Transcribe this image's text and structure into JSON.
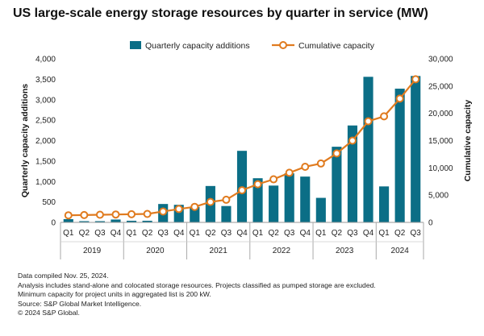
{
  "title": "US large-scale energy storage resources by quarter in service (MW)",
  "chart_data": {
    "type": "bar+line",
    "categories": [
      "Q1",
      "Q2",
      "Q3",
      "Q4",
      "Q1",
      "Q2",
      "Q3",
      "Q4",
      "Q1",
      "Q2",
      "Q3",
      "Q4",
      "Q1",
      "Q2",
      "Q3",
      "Q4",
      "Q1",
      "Q2",
      "Q3",
      "Q4",
      "Q1",
      "Q2",
      "Q3"
    ],
    "years": [
      {
        "label": "2019",
        "start": 0,
        "count": 4
      },
      {
        "label": "2020",
        "start": 4,
        "count": 4
      },
      {
        "label": "2021",
        "start": 8,
        "count": 4
      },
      {
        "label": "2022",
        "start": 12,
        "count": 4
      },
      {
        "label": "2023",
        "start": 16,
        "count": 4
      },
      {
        "label": "2024",
        "start": 20,
        "count": 3
      }
    ],
    "series": [
      {
        "name": "Quarterly capacity additions",
        "type": "bar",
        "axis": "left",
        "color": "#0b6e86",
        "values": [
          80,
          30,
          30,
          70,
          40,
          40,
          450,
          430,
          380,
          890,
          400,
          1750,
          1080,
          900,
          1200,
          1120,
          600,
          1850,
          2370,
          3560,
          880,
          3270,
          3580
        ]
      },
      {
        "name": "Cumulative capacity",
        "type": "line",
        "axis": "right",
        "color": "#e07b1f",
        "values": [
          1300,
          1350,
          1400,
          1450,
          1500,
          1550,
          2000,
          2450,
          2850,
          3750,
          4150,
          5900,
          7000,
          7900,
          9100,
          10200,
          10800,
          12650,
          15000,
          18550,
          19450,
          22700,
          26250
        ]
      }
    ],
    "ylabel_left": "Quarterly capacity additions",
    "ylabel_right": "Cumulative capacity",
    "ylim_left": [
      0,
      4000
    ],
    "ylim_right": [
      0,
      30000
    ],
    "yticks_left": [
      "0",
      "500",
      "1,000",
      "1,500",
      "2,000",
      "2,500",
      "3,000",
      "3,500",
      "4,000"
    ],
    "yticks_right": [
      "0",
      "5,000",
      "10,000",
      "15,000",
      "20,000",
      "25,000",
      "30,000"
    ],
    "legend_position": "top-center",
    "grid": false
  },
  "notes": [
    "Data compiled Nov. 25, 2024.",
    "Analysis includes stand-alone and colocated storage resources. Projects classified as pumped storage are excluded.",
    "Minimum capacity for project units in aggregated list is 200 kW.",
    "Source: S&P Global Market Intelligence.",
    "© 2024 S&P Global."
  ]
}
